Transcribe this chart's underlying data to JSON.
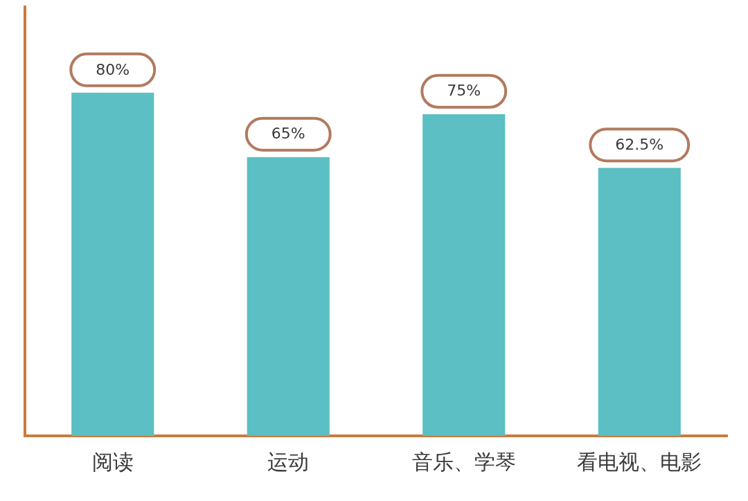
{
  "chart_data": {
    "type": "bar",
    "categories": [
      "阅读",
      "运动",
      "音乐、学琴",
      "看电视、电影"
    ],
    "values": [
      80,
      65,
      75,
      62.5
    ],
    "color": "#5bbfc3",
    "value_labels": [
      "80%",
      "65%",
      "75%",
      "62.5%"
    ],
    "tick_labels": "x",
    "grid": false
  }
}
